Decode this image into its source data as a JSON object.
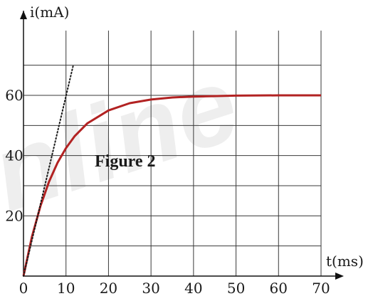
{
  "chart_data": {
    "type": "line",
    "title": "Figure 2",
    "xlabel": "t(ms)",
    "ylabel": "i(mA)",
    "xlim": [
      0,
      70
    ],
    "ylim": [
      0,
      70
    ],
    "x_ticks": [
      0,
      10,
      20,
      30,
      40,
      50,
      60,
      70
    ],
    "y_ticks": [
      20,
      40,
      60
    ],
    "grid": true,
    "series": [
      {
        "style": "solid",
        "color": "#b22222",
        "x": [
          0,
          2,
          4,
          6,
          8,
          10,
          12,
          15,
          20,
          25,
          30,
          35,
          40,
          50,
          60,
          70
        ],
        "y": [
          0,
          13.1,
          23.3,
          31.3,
          37.6,
          42.5,
          46.4,
          50.7,
          55.0,
          57.4,
          58.6,
          59.3,
          59.6,
          59.9,
          60.0,
          60.0
        ]
      },
      {
        "style": "dotted",
        "color": "#1a1a1a",
        "x": [
          0,
          11.7
        ],
        "y": [
          0,
          70
        ]
      }
    ],
    "watermark": "nline"
  }
}
